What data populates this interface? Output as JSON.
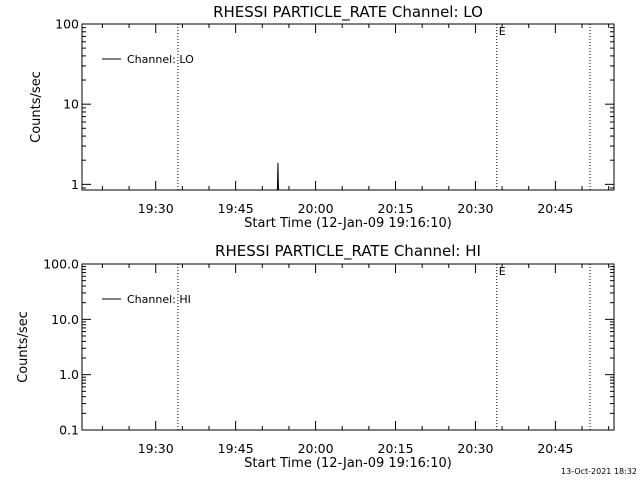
{
  "timestamp": "13-Oct-2021 18:32",
  "chart_data": [
    {
      "type": "line",
      "title": "RHESSI PARTICLE_RATE Channel: LO",
      "xlabel": "Start Time (12-Jan-09 19:16:10)",
      "ylabel": "Counts/sec",
      "yscale": "log",
      "ylim": [
        0.85,
        100
      ],
      "xlim": [
        "19:16:10",
        "20:56:00"
      ],
      "x_ticks": [
        "19:30",
        "19:45",
        "20:00",
        "20:15",
        "20:30",
        "20:45"
      ],
      "y_ticks": [
        "1",
        "10",
        "100"
      ],
      "markers": [
        {
          "label": "",
          "time": "19:34:10"
        },
        {
          "label": "E",
          "time": "20:34:00"
        },
        {
          "label": "",
          "time": "20:51:30"
        }
      ],
      "series": [
        {
          "name": "Channel: LO",
          "points": [
            [
              "19:52:50",
              0.85
            ],
            [
              "19:52:53",
              1.2
            ],
            [
              "19:52:56",
              1.85
            ],
            [
              "19:52:59",
              1.3
            ],
            [
              "19:53:02",
              0.85
            ]
          ]
        }
      ],
      "legend": "top-left",
      "grid": false
    },
    {
      "type": "line",
      "title": "RHESSI PARTICLE_RATE Channel: HI",
      "xlabel": "Start Time (12-Jan-09 19:16:10)",
      "ylabel": "Counts/sec",
      "yscale": "log",
      "ylim": [
        0.1,
        100
      ],
      "xlim": [
        "19:16:10",
        "20:56:00"
      ],
      "x_ticks": [
        "19:30",
        "19:45",
        "20:00",
        "20:15",
        "20:30",
        "20:45"
      ],
      "y_ticks": [
        "0.1",
        "1.0",
        "10.0",
        "100.0"
      ],
      "markers": [
        {
          "label": "",
          "time": "19:34:10"
        },
        {
          "label": "E",
          "time": "20:34:00"
        },
        {
          "label": "",
          "time": "20:51:30"
        }
      ],
      "series": [
        {
          "name": "Channel: HI",
          "points": []
        }
      ],
      "legend": "top-left",
      "grid": false
    }
  ]
}
